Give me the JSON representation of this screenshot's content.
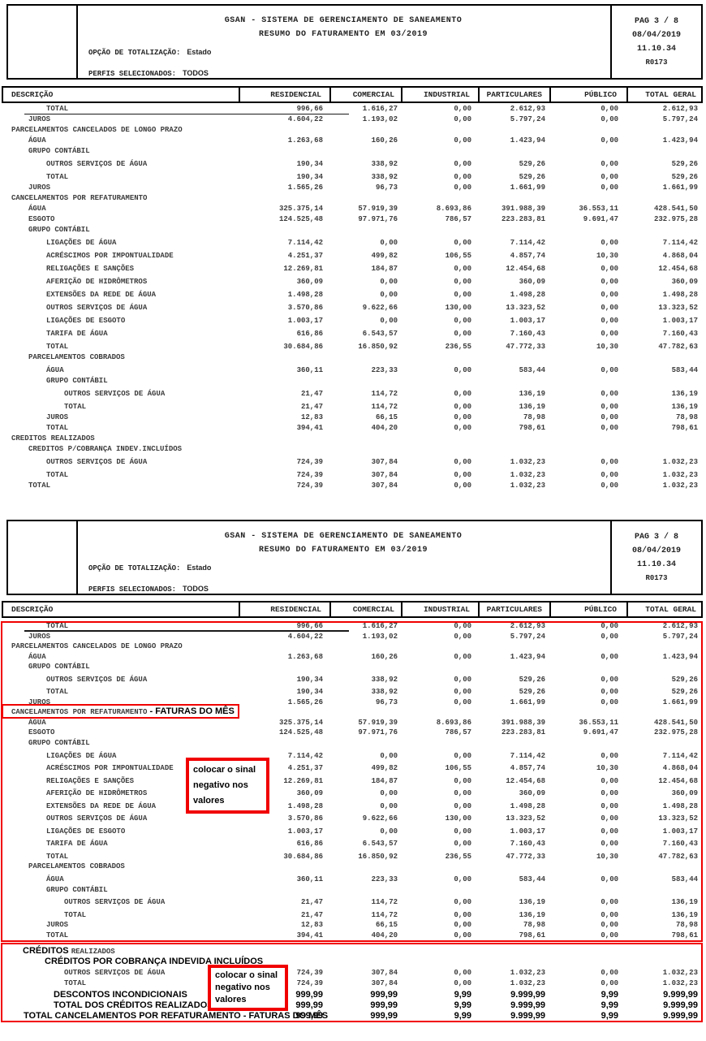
{
  "report_header": {
    "title1": "GSAN - SISTEMA DE GERENCIAMENTO DE SANEAMENTO",
    "title2": "RESUMO DO FATURAMENTO EM  03/2019",
    "option_label": "OPÇÃO DE TOTALIZAÇÃO:",
    "option_value": "Estado",
    "profiles_label": "PERFIS SELECIONADOS:",
    "profiles_value": "TODOS",
    "page": "PAG 3 / 8",
    "date": "08/04/2019",
    "time": "11.10.34",
    "code": "R0173"
  },
  "table": {
    "columns": [
      "DESCRIÇÃO",
      "RESIDENCIAL",
      "COMERCIAL",
      "INDUSTRIAL",
      "PARTICULARES",
      "PÚBLICO",
      "TOTAL GERAL"
    ]
  },
  "report_top": {
    "rows": [
      {
        "label": "TOTAL",
        "ind": 55,
        "ul": true,
        "v": [
          "996,66",
          "1.616,27",
          "0,00",
          "2.612,93",
          "0,00",
          "2.612,93"
        ]
      },
      {
        "label": "JUROS",
        "ind": 33,
        "v": [
          "4.604,22",
          "1.193,02",
          "0,00",
          "5.797,24",
          "0,00",
          "5.797,24"
        ]
      },
      {
        "label": "PARCELAMENTOS CANCELADOS DE LONGO PRAZO",
        "ind": 12
      },
      {
        "label": "ÁGUA",
        "ind": 33,
        "v": [
          "1.263,68",
          "160,26",
          "0,00",
          "1.423,94",
          "0,00",
          "1.423,94"
        ]
      },
      {
        "label": "GRUPO CONTÁBIL",
        "ind": 33
      },
      {
        "label": "OUTROS SERVIÇOS DE ÁGUA",
        "ind": 55,
        "sp": true,
        "v": [
          "190,34",
          "338,92",
          "0,00",
          "529,26",
          "0,00",
          "529,26"
        ]
      },
      {
        "label": "TOTAL",
        "ind": 55,
        "sp": true,
        "v": [
          "190,34",
          "338,92",
          "0,00",
          "529,26",
          "0,00",
          "529,26"
        ]
      },
      {
        "label": "JUROS",
        "ind": 33,
        "v": [
          "1.565,26",
          "96,73",
          "0,00",
          "1.661,99",
          "0,00",
          "1.661,99"
        ]
      },
      {
        "label": "CANCELAMENTOS POR REFATURAMENTO",
        "ind": 12
      },
      {
        "label": "ÁGUA",
        "ind": 33,
        "v": [
          "325.375,14",
          "57.919,39",
          "8.693,86",
          "391.988,39",
          "36.553,11",
          "428.541,50"
        ]
      },
      {
        "label": "ESGOTO",
        "ind": 33,
        "v": [
          "124.525,48",
          "97.971,76",
          "786,57",
          "223.283,81",
          "9.691,47",
          "232.975,28"
        ]
      },
      {
        "label": "GRUPO CONTÁBIL",
        "ind": 33
      },
      {
        "label": "LIGAÇÕES DE ÁGUA",
        "ind": 55,
        "sp": true,
        "v": [
          "7.114,42",
          "0,00",
          "0,00",
          "7.114,42",
          "0,00",
          "7.114,42"
        ]
      },
      {
        "label": "ACRÉSCIMOS POR IMPONTUALIDADE",
        "ind": 55,
        "sp": true,
        "v": [
          "4.251,37",
          "499,82",
          "106,55",
          "4.857,74",
          "10,30",
          "4.868,04"
        ]
      },
      {
        "label": "RELIGAÇÕES E SANÇÕES",
        "ind": 55,
        "sp": true,
        "v": [
          "12.269,81",
          "184,87",
          "0,00",
          "12.454,68",
          "0,00",
          "12.454,68"
        ]
      },
      {
        "label": "AFERIÇÃO DE HIDRÔMETROS",
        "ind": 55,
        "sp": true,
        "v": [
          "360,09",
          "0,00",
          "0,00",
          "360,09",
          "0,00",
          "360,09"
        ]
      },
      {
        "label": "EXTENSÕES DA REDE DE ÁGUA",
        "ind": 55,
        "sp": true,
        "v": [
          "1.498,28",
          "0,00",
          "0,00",
          "1.498,28",
          "0,00",
          "1.498,28"
        ]
      },
      {
        "label": "OUTROS SERVIÇOS DE ÁGUA",
        "ind": 55,
        "sp": true,
        "v": [
          "3.570,86",
          "9.622,66",
          "130,00",
          "13.323,52",
          "0,00",
          "13.323,52"
        ]
      },
      {
        "label": "LIGAÇÕES DE ESGOTO",
        "ind": 55,
        "sp": true,
        "v": [
          "1.003,17",
          "0,00",
          "0,00",
          "1.003,17",
          "0,00",
          "1.003,17"
        ]
      },
      {
        "label": "TARIFA DE ÁGUA",
        "ind": 55,
        "sp": true,
        "v": [
          "616,86",
          "6.543,57",
          "0,00",
          "7.160,43",
          "0,00",
          "7.160,43"
        ]
      },
      {
        "label": "TOTAL",
        "ind": 55,
        "sp": true,
        "v": [
          "30.684,86",
          "16.850,92",
          "236,55",
          "47.772,33",
          "10,30",
          "47.782,63"
        ]
      },
      {
        "label": "PARCELAMENTOS COBRADOS",
        "ind": 33
      },
      {
        "label": "ÁGUA",
        "ind": 55,
        "sp": true,
        "v": [
          "360,11",
          "223,33",
          "0,00",
          "583,44",
          "0,00",
          "583,44"
        ]
      },
      {
        "label": "GRUPO CONTÁBIL",
        "ind": 55
      },
      {
        "label": "OUTROS SERVIÇOS DE ÁGUA",
        "ind": 77,
        "sp": true,
        "v": [
          "21,47",
          "114,72",
          "0,00",
          "136,19",
          "0,00",
          "136,19"
        ]
      },
      {
        "label": "TOTAL",
        "ind": 77,
        "sp": true,
        "v": [
          "21,47",
          "114,72",
          "0,00",
          "136,19",
          "0,00",
          "136,19"
        ]
      },
      {
        "label": "JUROS",
        "ind": 55,
        "v": [
          "12,83",
          "66,15",
          "0,00",
          "78,98",
          "0,00",
          "78,98"
        ]
      },
      {
        "label": "TOTAL",
        "ind": 55,
        "v": [
          "394,41",
          "404,20",
          "0,00",
          "798,61",
          "0,00",
          "798,61"
        ]
      },
      {
        "label": "CREDITOS REALIZADOS",
        "ind": 12
      },
      {
        "label": "CREDITOS P/COBRANÇA INDEV.INCLUÍDOS",
        "ind": 33
      },
      {
        "label": "OUTROS SERVIÇOS DE ÁGUA",
        "ind": 55,
        "sp": true,
        "v": [
          "724,39",
          "307,84",
          "0,00",
          "1.032,23",
          "0,00",
          "1.032,23"
        ]
      },
      {
        "label": "TOTAL",
        "ind": 55,
        "sp": true,
        "v": [
          "724,39",
          "307,84",
          "0,00",
          "1.032,23",
          "0,00",
          "1.032,23"
        ]
      },
      {
        "label": "TOTAL",
        "ind": 33,
        "v": [
          "724,39",
          "307,84",
          "0,00",
          "1.032,23",
          "0,00",
          "1.032,23"
        ]
      }
    ]
  },
  "report_bottom": {
    "rows_main": [
      {
        "label": "TOTAL",
        "ind": 55,
        "ul": true,
        "v": [
          "996,66",
          "1.616,27",
          "0,00",
          "2.612,93",
          "0,00",
          "2.612,93"
        ]
      },
      {
        "label": "JUROS",
        "ind": 33,
        "v": [
          "4.604,22",
          "1.193,02",
          "0,00",
          "5.797,24",
          "0,00",
          "5.797,24"
        ]
      },
      {
        "label": "PARCELAMENTOS CANCELADOS DE LONGO PRAZO",
        "ind": 12
      },
      {
        "label": "ÁGUA",
        "ind": 33,
        "v": [
          "1.263,68",
          "160,26",
          "0,00",
          "1.423,94",
          "0,00",
          "1.423,94"
        ]
      },
      {
        "label": "GRUPO CONTÁBIL",
        "ind": 33
      },
      {
        "label": "OUTROS SERVIÇOS DE ÁGUA",
        "ind": 55,
        "sp": true,
        "v": [
          "190,34",
          "338,92",
          "0,00",
          "529,26",
          "0,00",
          "529,26"
        ]
      },
      {
        "label": "TOTAL",
        "ind": 55,
        "sp": true,
        "v": [
          "190,34",
          "338,92",
          "0,00",
          "529,26",
          "0,00",
          "529,26"
        ]
      },
      {
        "label": "JUROS",
        "ind": 33,
        "v": [
          "1.565,26",
          "96,73",
          "0,00",
          "1.661,99",
          "0,00",
          "1.661,99"
        ]
      },
      {
        "parts": [
          {
            "t": "CANCELAMENTOS POR REFATURAMENTO",
            "f": "mono"
          },
          {
            "t": " - FATURAS DO MÊS",
            "f": "arial"
          }
        ],
        "ind": 12,
        "box": true
      },
      {
        "label": "ÁGUA",
        "ind": 33,
        "v": [
          "325.375,14",
          "57.919,39",
          "8.693,86",
          "391.988,39",
          "36.553,11",
          "428.541,50"
        ]
      },
      {
        "label": "ESGOTO",
        "ind": 33,
        "v": [
          "124.525,48",
          "97.971,76",
          "786,57",
          "223.283,81",
          "9.691,47",
          "232.975,28"
        ]
      },
      {
        "label": "GRUPO CONTÁBIL",
        "ind": 33
      },
      {
        "label": "LIGAÇÕES DE ÁGUA",
        "ind": 55,
        "sp": true,
        "v": [
          "7.114,42",
          "0,00",
          "0,00",
          "7.114,42",
          "0,00",
          "7.114,42"
        ]
      },
      {
        "label": "ACRÉSCIMOS POR IMPONTUALIDADE",
        "ind": 55,
        "sp": true,
        "v": [
          "4.251,37",
          "499,82",
          "106,55",
          "4.857,74",
          "10,30",
          "4.868,04"
        ]
      },
      {
        "label": "RELIGAÇÕES E SANÇÕES",
        "ind": 55,
        "sp": true,
        "v": [
          "12.269,81",
          "184,87",
          "0,00",
          "12.454,68",
          "0,00",
          "12.454,68"
        ]
      },
      {
        "label": "AFERIÇÃO DE HIDRÔMETROS",
        "ind": 55,
        "sp": true,
        "v": [
          "360,09",
          "0,00",
          "0,00",
          "360,09",
          "0,00",
          "360,09"
        ]
      },
      {
        "label": "EXTENSÕES DA REDE DE ÁGUA",
        "ind": 55,
        "sp": true,
        "v": [
          "1.498,28",
          "0,00",
          "0,00",
          "1.498,28",
          "0,00",
          "1.498,28"
        ]
      },
      {
        "label": "OUTROS SERVIÇOS DE ÁGUA",
        "ind": 55,
        "sp": true,
        "v": [
          "3.570,86",
          "9.622,66",
          "130,00",
          "13.323,52",
          "0,00",
          "13.323,52"
        ]
      },
      {
        "label": "LIGAÇÕES DE ESGOTO",
        "ind": 55,
        "sp": true,
        "v": [
          "1.003,17",
          "0,00",
          "0,00",
          "1.003,17",
          "0,00",
          "1.003,17"
        ]
      },
      {
        "label": "TARIFA DE ÁGUA",
        "ind": 55,
        "sp": true,
        "v": [
          "616,86",
          "6.543,57",
          "0,00",
          "7.160,43",
          "0,00",
          "7.160,43"
        ]
      },
      {
        "label": "TOTAL",
        "ind": 55,
        "sp": true,
        "v": [
          "30.684,86",
          "16.850,92",
          "236,55",
          "47.772,33",
          "10,30",
          "47.782,63"
        ]
      },
      {
        "label": "PARCELAMENTOS COBRADOS",
        "ind": 33
      },
      {
        "label": "ÁGUA",
        "ind": 55,
        "sp": true,
        "v": [
          "360,11",
          "223,33",
          "0,00",
          "583,44",
          "0,00",
          "583,44"
        ]
      },
      {
        "label": "GRUPO CONTÁBIL",
        "ind": 55
      },
      {
        "label": "OUTROS SERVIÇOS DE ÁGUA",
        "ind": 77,
        "sp": true,
        "v": [
          "21,47",
          "114,72",
          "0,00",
          "136,19",
          "0,00",
          "136,19"
        ]
      },
      {
        "label": "TOTAL",
        "ind": 77,
        "sp": true,
        "v": [
          "21,47",
          "114,72",
          "0,00",
          "136,19",
          "0,00",
          "136,19"
        ]
      },
      {
        "label": "JUROS",
        "ind": 55,
        "v": [
          "12,83",
          "66,15",
          "0,00",
          "78,98",
          "0,00",
          "78,98"
        ]
      },
      {
        "label": "TOTAL",
        "ind": 55,
        "v": [
          "394,41",
          "404,20",
          "0,00",
          "798,61",
          "0,00",
          "798,61"
        ]
      }
    ],
    "rows_credits": [
      {
        "parts": [
          {
            "t": "CRÉDITOS ",
            "f": "arial"
          },
          {
            "t": "REALIZADOS",
            "f": "mono"
          }
        ],
        "ind": 26
      },
      {
        "label": "CRÉDITOS POR COBRANÇA INDEVIDA INCLUÍDOS",
        "f": "arial",
        "ind": 53
      },
      {
        "label": "OUTROS SERVIÇOS DE ÁGUA",
        "ind": 77,
        "mt": 2,
        "v": [
          "724,39",
          "307,84",
          "0,00",
          "1.032,23",
          "0,00",
          "1.032,23"
        ]
      },
      {
        "label": "TOTAL",
        "ind": 77,
        "v": [
          "724,39",
          "307,84",
          "0,00",
          "1.032,23",
          "0,00",
          "1.032,23"
        ]
      },
      {
        "label": "DESCONTOS INCONDICIONAIS",
        "f": "arial",
        "ind": 64,
        "vf": "arial",
        "v": [
          "999,99",
          "999,99",
          "9,99",
          "9.999,99",
          "9,99",
          "9.999,99"
        ]
      },
      {
        "label": "TOTAL DOS CRÉDITOS REALIZADOS",
        "f": "arial",
        "ind": 64,
        "vf": "arial",
        "v": [
          "999,99",
          "999,99",
          "9,99",
          "9.999,99",
          "9,99",
          "9.999,99"
        ]
      },
      {
        "label": "TOTAL CANCELAMENTOS POR REFATURAMENTO - FATURAS DO MÊS",
        "f": "arial",
        "ind": 27,
        "vf": "arial",
        "v": [
          "999,99",
          "999,99",
          "9,99",
          "9.999,99",
          "9,99",
          "9.999,99"
        ]
      }
    ]
  },
  "annotations": {
    "red": "#f10000",
    "note1_lines": [
      "colocar o sinal",
      "negativo nos",
      "valores"
    ],
    "note2_lines": [
      "colocar o sinal",
      "negativo nos",
      "valores"
    ]
  }
}
